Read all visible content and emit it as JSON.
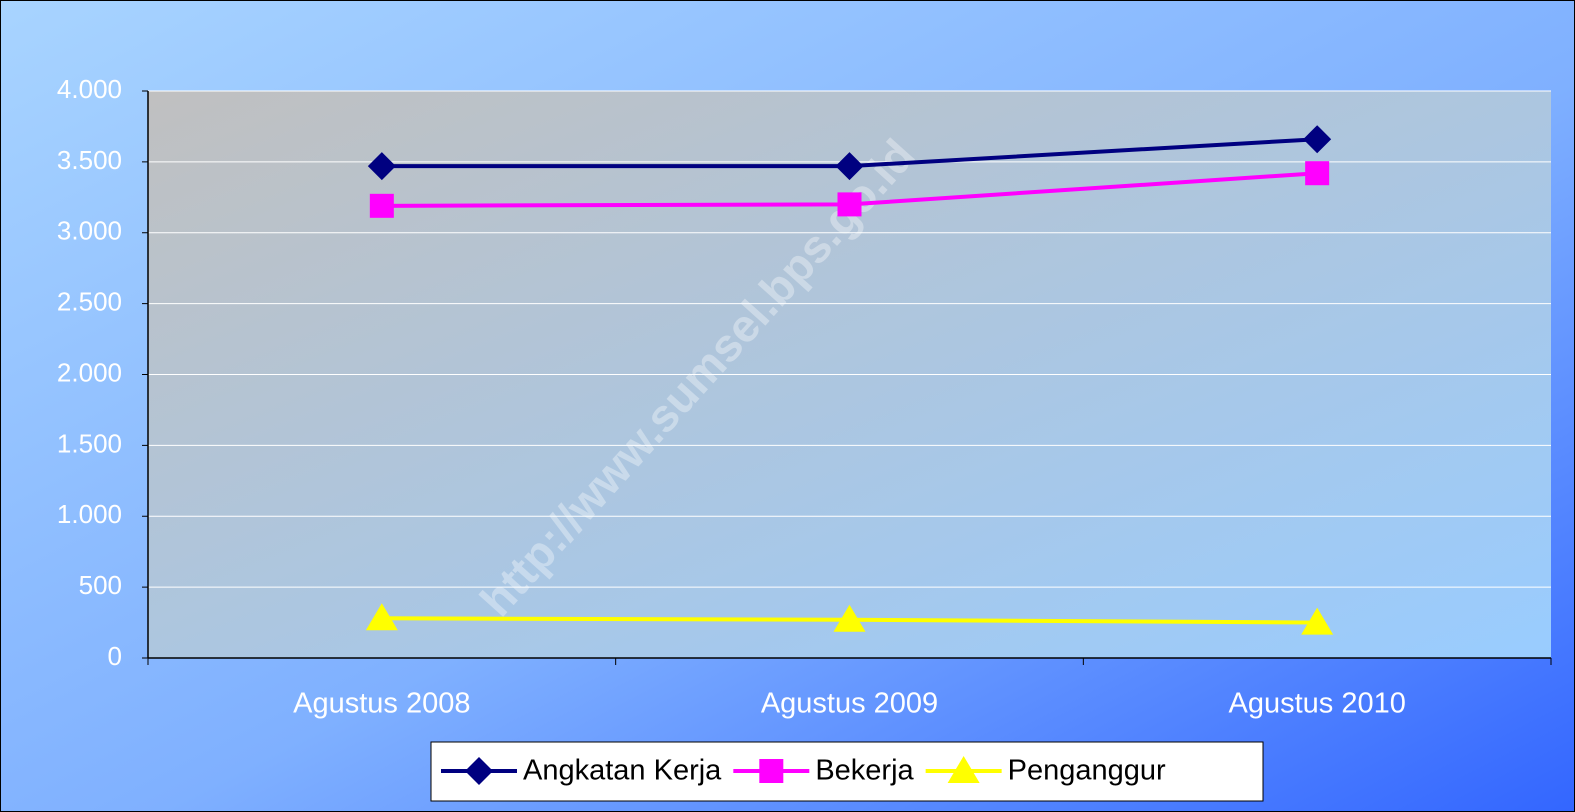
{
  "chart_data": {
    "type": "line",
    "categories": [
      "Agustus 2008",
      "Agustus 2009",
      "Agustus 2010"
    ],
    "series": [
      {
        "name": "Angkatan Kerja",
        "color": "#000080",
        "marker": "diamond",
        "values": [
          3470,
          3470,
          3660
        ]
      },
      {
        "name": "Bekerja",
        "color": "#ff00ff",
        "marker": "square",
        "values": [
          3190,
          3200,
          3420
        ]
      },
      {
        "name": "Penganggur",
        "color": "#ffff00",
        "marker": "triangle",
        "values": [
          280,
          270,
          250
        ]
      }
    ],
    "ylim": [
      0,
      4000
    ],
    "yticks": [
      0,
      500,
      {
        "value": 1000,
        "label": "1.000"
      },
      {
        "value": 1500,
        "label": "1.500"
      },
      {
        "value": 2000,
        "label": "2.000"
      },
      {
        "value": 2500,
        "label": "2.500"
      },
      {
        "value": 3000,
        "label": "3.000"
      },
      {
        "value": 3500,
        "label": "3.500"
      },
      {
        "value": 4000,
        "label": "4.000"
      }
    ],
    "grid": true,
    "legend": "bottom",
    "watermark": "http://www.sumsel.bps.go.id"
  }
}
